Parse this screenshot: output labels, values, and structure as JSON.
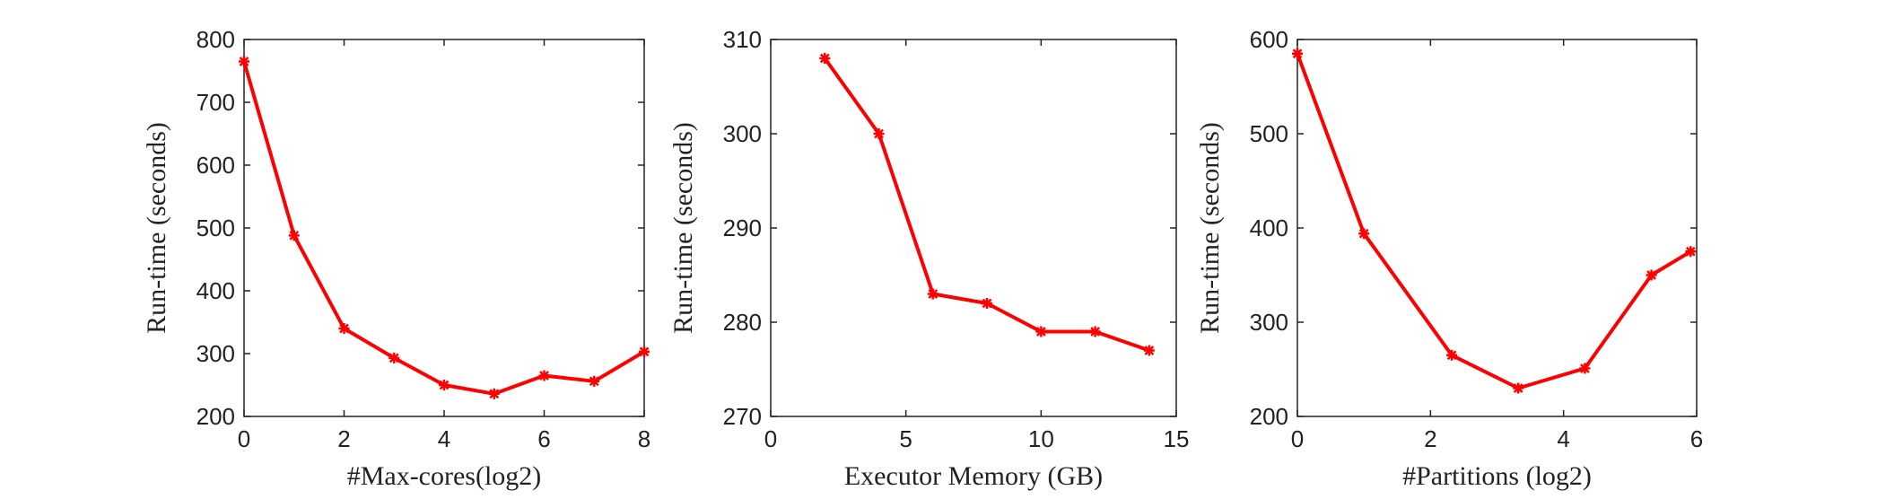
{
  "colors": {
    "series": "#ff0000",
    "axis": "#222222",
    "background": "#ffffff"
  },
  "marker": "asterisk",
  "chart_data": [
    {
      "type": "line",
      "xlabel": "#Max-cores(log2)",
      "ylabel": "Run-time (seconds)",
      "xlim": [
        0,
        8
      ],
      "ylim": [
        200,
        800
      ],
      "xticks": [
        0,
        2,
        4,
        6,
        8
      ],
      "yticks": [
        200,
        300,
        400,
        500,
        600,
        700,
        800
      ],
      "grid": false,
      "series": [
        {
          "x": [
            0,
            1,
            2,
            3,
            4,
            5,
            6,
            7,
            8
          ],
          "y": [
            765,
            488,
            340,
            293,
            250,
            236,
            265,
            256,
            303
          ]
        }
      ]
    },
    {
      "type": "line",
      "xlabel": "Executor Memory (GB)",
      "ylabel": "Run-time (seconds)",
      "xlim": [
        0,
        15
      ],
      "ylim": [
        270,
        310
      ],
      "xticks": [
        0,
        5,
        10,
        15
      ],
      "yticks": [
        270,
        280,
        290,
        300,
        310
      ],
      "grid": false,
      "series": [
        {
          "x": [
            2,
            4,
            6,
            8,
            10,
            12,
            14
          ],
          "y": [
            308,
            300,
            283,
            282,
            279,
            279,
            277
          ]
        }
      ]
    },
    {
      "type": "line",
      "xlabel": "#Partitions (log2)",
      "ylabel": "Run-time (seconds)",
      "xlim": [
        0,
        6
      ],
      "ylim": [
        200,
        600
      ],
      "xticks": [
        0,
        2,
        4,
        6
      ],
      "yticks": [
        200,
        300,
        400,
        500,
        600
      ],
      "grid": false,
      "series": [
        {
          "x": [
            0,
            1,
            2.32,
            3.32,
            4.32,
            5.32,
            5.91
          ],
          "y": [
            585,
            394,
            265,
            230,
            251,
            350,
            375
          ]
        }
      ]
    }
  ]
}
